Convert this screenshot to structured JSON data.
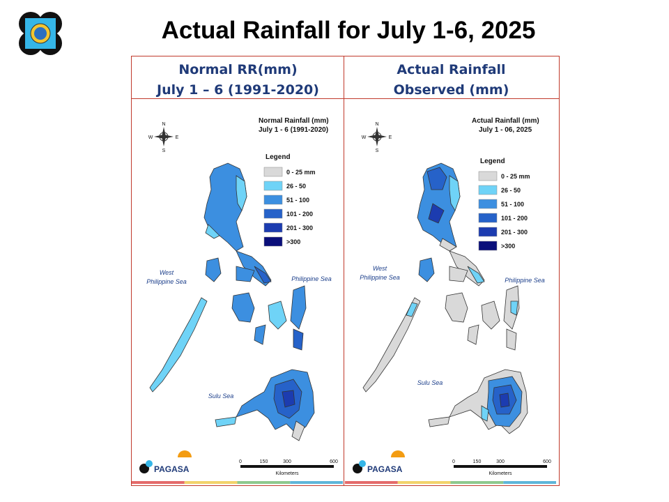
{
  "page": {
    "title": "Actual Rainfall for July 1-6, 2025"
  },
  "columns": [
    {
      "header_line1": "Normal RR(mm)",
      "header_line2": "July 1 – 6 (1991-2020)",
      "map_title_line1": "Normal Rainfall (mm)",
      "map_title_line2": "July 1 - 6 (1991-2020)"
    },
    {
      "header_line1": "Actual Rainfall",
      "header_line2": "Observed  (mm)",
      "map_title_line1": "Actual Rainfall (mm)",
      "map_title_line2": "July 1 - 06, 2025"
    }
  ],
  "legend": {
    "title": "Legend",
    "items": [
      {
        "label": "0 - 25 mm",
        "color": "#d9d9d9"
      },
      {
        "label": "26 - 50",
        "color": "#6fd3f7"
      },
      {
        "label": "51 - 100",
        "color": "#3c8fe0"
      },
      {
        "label": "101 - 200",
        "color": "#2662c9"
      },
      {
        "label": "201 - 300",
        "color": "#1c3cb0"
      },
      {
        "label": ">300",
        "color": "#0a0f7a"
      }
    ]
  },
  "labels": {
    "west_sea_line1": "West",
    "west_sea_line2": "Philippine Sea",
    "east_sea": "Philippine Sea",
    "south_sea": "Sulu Sea",
    "compass_n": "N",
    "compass_s": "S",
    "compass_e": "E",
    "compass_w": "W"
  },
  "scale_bar": {
    "ticks": [
      "0",
      "150",
      "300",
      "600"
    ],
    "unit": "Kilometers"
  },
  "branding": {
    "logo_text": "PAGASA"
  },
  "footer_colors": [
    "#e46a6a",
    "#f2d36b",
    "#8ec98e",
    "#5fb6d9"
  ]
}
